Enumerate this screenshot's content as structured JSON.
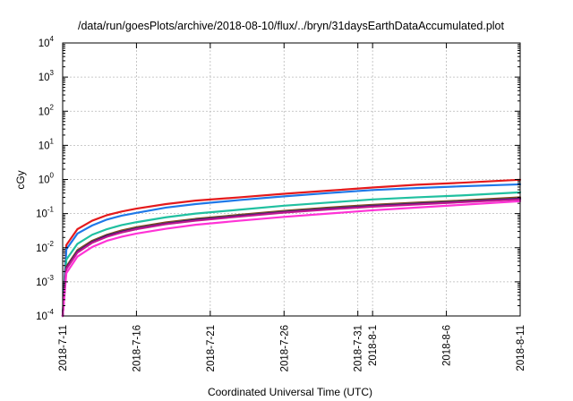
{
  "chart_data": {
    "type": "line",
    "title": "/data/run/goesPlots/archive/2018-08-10/flux/../bryn/31daysEarthDataAccumulated.plot",
    "xlabel": "Coordinated Universal Time (UTC)",
    "ylabel": "cGy",
    "y_scale": "log",
    "ylim": [
      0.0001,
      10000
    ],
    "xlim": [
      "2018-07-11",
      "2018-08-11"
    ],
    "grid": true,
    "legend": "none",
    "x_ticks": [
      "2018-7-11",
      "2018-7-16",
      "2018-7-21",
      "2018-7-26",
      "2018-7-31",
      "2018-8-1",
      "2018-8-6",
      "2018-8-11"
    ],
    "x_tick_dates": [
      "2018-07-11",
      "2018-07-16",
      "2018-07-21",
      "2018-07-26",
      "2018-07-31",
      "2018-08-01",
      "2018-08-06",
      "2018-08-11"
    ],
    "y_ticks": [
      {
        "base": "10",
        "exp": "-4",
        "value": 0.0001
      },
      {
        "base": "10",
        "exp": "-3",
        "value": 0.001
      },
      {
        "base": "10",
        "exp": "-2",
        "value": 0.01
      },
      {
        "base": "10",
        "exp": "-1",
        "value": 0.1
      },
      {
        "base": "10",
        "exp": "0",
        "value": 1
      },
      {
        "base": "10",
        "exp": "1",
        "value": 10
      },
      {
        "base": "10",
        "exp": "2",
        "value": 100
      },
      {
        "base": "10",
        "exp": "3",
        "value": 1000
      },
      {
        "base": "10",
        "exp": "4",
        "value": 10000
      }
    ],
    "x": [
      "2018-07-11",
      "2018-07-11T06:00",
      "2018-07-12",
      "2018-07-13",
      "2018-07-14",
      "2018-07-15",
      "2018-07-16",
      "2018-07-18",
      "2018-07-20",
      "2018-07-23",
      "2018-07-26",
      "2018-07-29",
      "2018-08-01",
      "2018-08-04",
      "2018-08-07",
      "2018-08-11"
    ],
    "series": [
      {
        "color": "#e41a1c",
        "values": [
          0.0001,
          0.012,
          0.035,
          0.062,
          0.09,
          0.115,
          0.14,
          0.19,
          0.24,
          0.3,
          0.38,
          0.47,
          0.58,
          0.7,
          0.8,
          0.98
        ]
      },
      {
        "color": "#1f78e8",
        "values": [
          0.0001,
          0.009,
          0.026,
          0.045,
          0.067,
          0.087,
          0.105,
          0.15,
          0.19,
          0.25,
          0.32,
          0.4,
          0.49,
          0.56,
          0.63,
          0.72
        ]
      },
      {
        "color": "#20c0a0",
        "values": [
          0.0001,
          0.0045,
          0.013,
          0.024,
          0.035,
          0.046,
          0.056,
          0.078,
          0.1,
          0.13,
          0.17,
          0.21,
          0.26,
          0.3,
          0.34,
          0.42
        ]
      },
      {
        "color": "#8b4513",
        "values": [
          0.0001,
          0.0028,
          0.0085,
          0.016,
          0.024,
          0.032,
          0.04,
          0.055,
          0.07,
          0.092,
          0.12,
          0.15,
          0.18,
          0.21,
          0.24,
          0.3
        ]
      },
      {
        "color": "#555555",
        "values": [
          0.0001,
          0.0026,
          0.008,
          0.015,
          0.023,
          0.03,
          0.038,
          0.052,
          0.067,
          0.088,
          0.115,
          0.142,
          0.172,
          0.2,
          0.23,
          0.28
        ]
      },
      {
        "color": "#2a0070",
        "values": [
          0.0001,
          0.0025,
          0.0075,
          0.0145,
          0.022,
          0.029,
          0.036,
          0.05,
          0.064,
          0.084,
          0.11,
          0.136,
          0.165,
          0.19,
          0.22,
          0.27
        ]
      },
      {
        "color": "#c01890",
        "values": [
          0.0001,
          0.0024,
          0.0072,
          0.014,
          0.021,
          0.028,
          0.035,
          0.049,
          0.062,
          0.082,
          0.107,
          0.132,
          0.16,
          0.185,
          0.215,
          0.26
        ]
      },
      {
        "color": "#ff33d6",
        "values": [
          0.0001,
          0.0018,
          0.0055,
          0.0105,
          0.016,
          0.021,
          0.026,
          0.036,
          0.047,
          0.062,
          0.08,
          0.1,
          0.125,
          0.15,
          0.18,
          0.23
        ]
      }
    ]
  }
}
